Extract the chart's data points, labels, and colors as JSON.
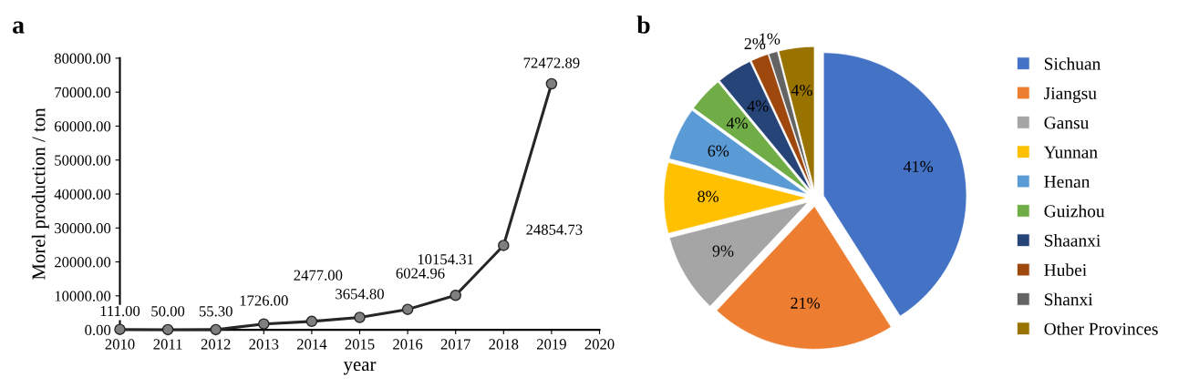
{
  "chart_data": [
    {
      "type": "line",
      "title": "a",
      "xlabel": "year",
      "ylabel": "Morel production / ton",
      "x": [
        2010,
        2011,
        2012,
        2013,
        2014,
        2015,
        2016,
        2017,
        2018,
        2019
      ],
      "series": [
        {
          "color": "#262626",
          "values": [
            111.0,
            50.0,
            55.3,
            1726.0,
            2477.0,
            3654.8,
            6024.96,
            10154.31,
            24854.73,
            72472.89
          ],
          "value_labels": [
            "111.00",
            "50.00",
            "55.30",
            "1726.00",
            "2477.00",
            "3654.80",
            "6024.96",
            "10154.31",
            "24854.73",
            "72472.89"
          ]
        }
      ],
      "xlim": [
        2010,
        2020
      ],
      "xticks": [
        2010,
        2011,
        2012,
        2013,
        2014,
        2015,
        2016,
        2017,
        2018,
        2019,
        2020
      ],
      "ylim": [
        0,
        80000
      ],
      "yticks": [
        {
          "value": 0,
          "label": "0.00"
        },
        {
          "value": 10000,
          "label": "10000.00"
        },
        {
          "value": 20000,
          "label": "20000.00"
        },
        {
          "value": 30000,
          "label": "30000.00"
        },
        {
          "value": 40000,
          "label": "40000.00"
        },
        {
          "value": 50000,
          "label": "50000.00"
        },
        {
          "value": 60000,
          "label": "60000.00"
        },
        {
          "value": 70000,
          "label": "70000.00"
        },
        {
          "value": 80000,
          "label": "80000.00"
        }
      ],
      "marker": "circle",
      "line_style": "solid",
      "grid": false,
      "legend": false
    },
    {
      "type": "pie",
      "title": "b",
      "categories": [
        "Sichuan",
        "Jiangsu",
        "Gansu",
        "Yunnan",
        "Henan",
        "Guizhou",
        "Shaanxi",
        "Hubei",
        "Shanxi",
        "Other Provinces"
      ],
      "values": [
        41,
        21,
        9,
        8,
        6,
        4,
        4,
        2,
        1,
        4
      ],
      "value_labels": [
        "41%",
        "21%",
        "9%",
        "8%",
        "6%",
        "4%",
        "4%",
        "2%",
        "1%",
        "4%"
      ],
      "colors": [
        "#4472c4",
        "#ed7d31",
        "#a5a5a5",
        "#ffc000",
        "#5b9bd5",
        "#70ad47",
        "#264478",
        "#9e480e",
        "#636363",
        "#997300"
      ],
      "legend": "right"
    }
  ]
}
